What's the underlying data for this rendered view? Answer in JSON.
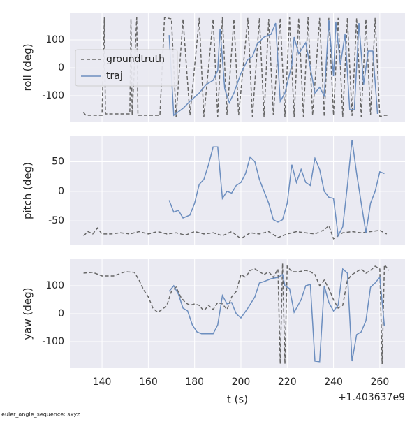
{
  "chart_data": [
    {
      "type": "line",
      "ylabel": "roll (deg)",
      "xlim": [
        126.1,
        270.9
      ],
      "xticks": [
        140,
        160,
        180,
        200,
        220,
        240,
        260
      ],
      "ylim": [
        -195,
        197.5
      ],
      "yticks": [
        -100,
        0,
        100
      ],
      "grid": true,
      "legend": "upper left",
      "series": [
        {
          "name": "groundtruth",
          "color": "#666666",
          "linestyle": "dashed",
          "x": [
            132,
            133,
            140,
            141,
            141.5,
            152,
            152.5,
            153,
            155,
            155.5,
            160,
            165,
            167,
            170,
            172,
            175,
            178,
            182,
            184,
            188,
            190,
            192,
            194,
            197,
            199,
            203,
            205,
            208,
            210,
            212,
            214,
            217,
            219,
            221,
            223,
            225,
            227,
            229,
            231,
            234,
            236,
            238,
            240,
            242,
            244,
            246,
            248,
            250,
            252,
            254,
            256,
            258,
            260,
            262,
            264
          ],
          "values": [
            -160,
            -170,
            -170,
            180,
            -165,
            -165,
            175,
            -170,
            180,
            -170,
            -170,
            -170,
            180,
            175,
            -175,
            175,
            -170,
            178,
            -175,
            175,
            -175,
            180,
            -170,
            175,
            -170,
            178,
            -175,
            178,
            -175,
            175,
            -170,
            178,
            -175,
            180,
            -175,
            178,
            -175,
            180,
            -170,
            178,
            -175,
            178,
            -170,
            178,
            -175,
            178,
            -172,
            178,
            -175,
            175,
            -170,
            178,
            -175,
            -170,
            -170
          ]
        },
        {
          "name": "traj",
          "color": "#6c8ebf",
          "linestyle": "solid",
          "x": [
            169,
            171,
            175,
            178,
            182,
            185,
            188,
            190,
            191,
            193,
            195,
            197,
            200,
            203,
            205,
            207,
            210,
            213,
            215,
            217,
            219,
            222,
            223,
            225,
            228,
            230,
            232,
            234,
            236,
            238,
            240,
            241,
            243,
            245,
            247,
            249,
            251,
            253,
            255,
            257,
            259
          ],
          "values": [
            117,
            -170,
            -145,
            -120,
            -90,
            -60,
            -45,
            -10,
            140,
            -75,
            -125,
            -90,
            -20,
            30,
            40,
            85,
            110,
            120,
            160,
            -120,
            -90,
            10,
            110,
            50,
            90,
            0,
            -90,
            -70,
            -100,
            170,
            -30,
            165,
            10,
            120,
            -150,
            -150,
            160,
            -60,
            60,
            60,
            -165
          ]
        }
      ]
    },
    {
      "type": "line",
      "ylabel": "pitch (deg)",
      "xlim": [
        126.1,
        270.9
      ],
      "xticks": [
        140,
        160,
        180,
        200,
        220,
        240,
        260
      ],
      "ylim": [
        -91,
        93
      ],
      "yticks": [
        -50,
        0,
        50
      ],
      "grid": true,
      "series": [
        {
          "name": "groundtruth",
          "color": "#666666",
          "linestyle": "dashed",
          "x": [
            132,
            134,
            136,
            138,
            140,
            144,
            148,
            152,
            156,
            160,
            164,
            168,
            172,
            176,
            180,
            184,
            188,
            192,
            196,
            200,
            204,
            208,
            212,
            216,
            220,
            224,
            228,
            232,
            236,
            238,
            240,
            244,
            248,
            252,
            256,
            260,
            263
          ],
          "values": [
            -75,
            -68,
            -72,
            -62,
            -72,
            -72,
            -70,
            -72,
            -68,
            -72,
            -68,
            -72,
            -70,
            -74,
            -68,
            -72,
            -70,
            -75,
            -68,
            -80,
            -70,
            -72,
            -68,
            -78,
            -72,
            -68,
            -70,
            -72,
            -65,
            -58,
            -80,
            -70,
            -68,
            -70,
            -68,
            -66,
            -72
          ]
        },
        {
          "name": "traj",
          "color": "#6c8ebf",
          "linestyle": "solid",
          "x": [
            169,
            171,
            173,
            175,
            178,
            180,
            182,
            184,
            186,
            188,
            190,
            192,
            194,
            196,
            198,
            200,
            202,
            204,
            206,
            208,
            210,
            212,
            214,
            216,
            218,
            220,
            222,
            224,
            226,
            228,
            230,
            232,
            234,
            236,
            238,
            240,
            242,
            244,
            246,
            248,
            250,
            252,
            254,
            256,
            258,
            260,
            262
          ],
          "values": [
            -15,
            -35,
            -32,
            -45,
            -40,
            -20,
            12,
            20,
            45,
            75,
            75,
            -12,
            0,
            -3,
            10,
            15,
            30,
            58,
            50,
            20,
            0,
            -20,
            -48,
            -52,
            -48,
            -20,
            45,
            15,
            37,
            15,
            10,
            56,
            37,
            0,
            -10,
            -12,
            -75,
            -60,
            10,
            87,
            30,
            -20,
            -70,
            -20,
            0,
            33,
            30
          ]
        }
      ]
    },
    {
      "type": "line",
      "ylabel": "yaw (deg)",
      "xlabel": "t (s)",
      "x_offset_label": "+1.403637e9",
      "xlim": [
        126.1,
        270.9
      ],
      "xticks": [
        140,
        160,
        180,
        200,
        220,
        240,
        260
      ],
      "ylim": [
        -195,
        195
      ],
      "yticks": [
        -100,
        0,
        100
      ],
      "grid": true,
      "series": [
        {
          "name": "groundtruth",
          "color": "#666666",
          "linestyle": "dashed",
          "x": [
            132,
            136,
            140,
            145,
            150,
            154,
            156,
            158,
            160,
            162,
            164,
            166,
            168,
            170,
            172,
            174,
            176,
            178,
            180,
            182,
            184,
            186,
            188,
            190,
            192,
            194,
            196,
            198,
            200,
            202,
            204,
            206,
            208,
            210,
            212,
            214,
            216,
            217,
            218,
            219,
            220,
            222,
            225,
            228,
            230,
            232,
            234,
            236,
            238,
            240,
            242,
            244,
            246,
            248,
            250,
            252,
            254,
            256,
            258,
            260,
            261,
            262,
            264
          ],
          "values": [
            145,
            148,
            135,
            135,
            150,
            148,
            120,
            85,
            60,
            20,
            5,
            15,
            30,
            80,
            95,
            60,
            40,
            30,
            35,
            30,
            10,
            30,
            15,
            40,
            35,
            15,
            60,
            80,
            140,
            130,
            155,
            160,
            150,
            140,
            150,
            130,
            160,
            -180,
            180,
            -180,
            170,
            150,
            150,
            155,
            150,
            140,
            100,
            120,
            90,
            50,
            20,
            30,
            120,
            140,
            150,
            160,
            145,
            155,
            170,
            160,
            -180,
            175,
            155
          ]
        },
        {
          "name": "traj",
          "color": "#6c8ebf",
          "linestyle": "solid",
          "x": [
            169,
            171,
            173,
            175,
            177,
            179,
            181,
            183,
            185,
            188,
            190,
            192,
            194,
            196,
            198,
            200,
            203,
            206,
            208,
            210,
            213,
            216,
            218,
            219,
            221,
            223,
            226,
            228,
            230,
            232,
            234,
            236,
            238,
            240,
            242,
            244,
            246,
            248,
            250,
            252,
            254,
            256,
            258,
            260,
            262
          ],
          "values": [
            80,
            100,
            70,
            20,
            10,
            -40,
            -65,
            -72,
            -72,
            -72,
            -40,
            65,
            35,
            40,
            0,
            -15,
            20,
            60,
            110,
            115,
            125,
            130,
            140,
            100,
            90,
            5,
            50,
            100,
            105,
            -170,
            -172,
            100,
            40,
            10,
            30,
            160,
            145,
            -170,
            -75,
            -65,
            -25,
            95,
            110,
            130,
            -45
          ]
        }
      ]
    }
  ],
  "footer": "euler_angle_sequence: sxyz"
}
